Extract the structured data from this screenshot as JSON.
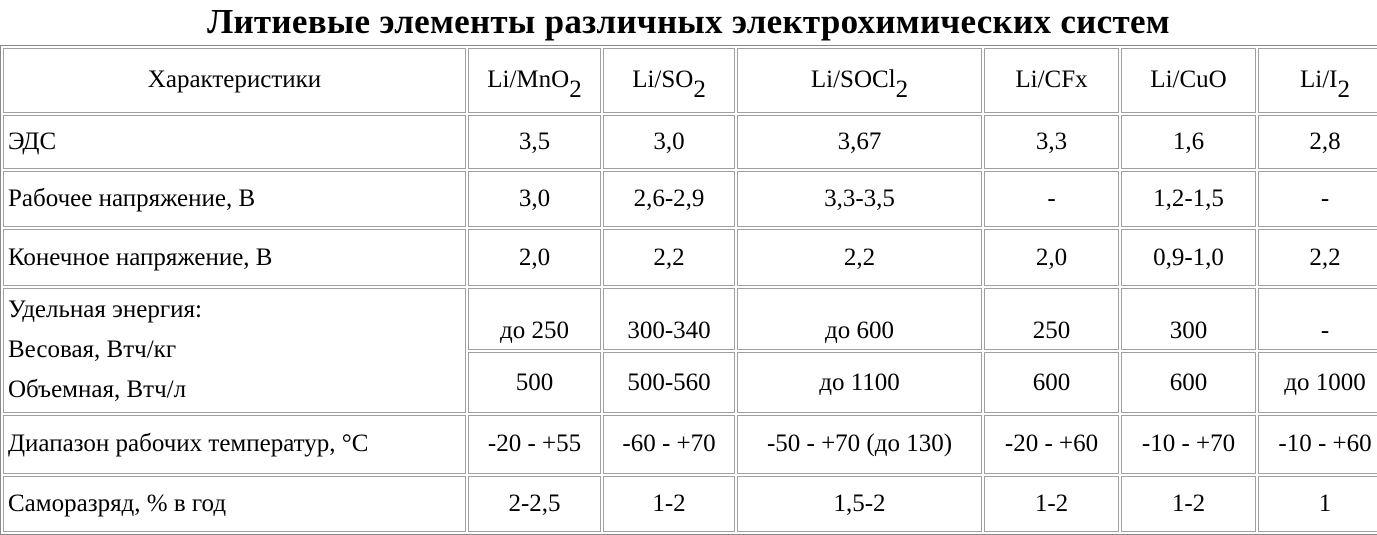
{
  "title": "Литиевые элементы различных электрохимических систем",
  "table": {
    "header": [
      {
        "text": "Характеристики"
      },
      {
        "text": "Li/MnO",
        "sub": "2"
      },
      {
        "text": "Li/SO",
        "sub": "2"
      },
      {
        "text": "Li/SOCl",
        "sub": "2"
      },
      {
        "text": "Li/CFx"
      },
      {
        "text": "Li/CuO"
      },
      {
        "text": "Li/I",
        "sub": "2"
      }
    ],
    "rows": [
      {
        "label": "ЭДС",
        "values": [
          "3,5",
          "3,0",
          "3,67",
          "3,3",
          "1,6",
          "2,8"
        ]
      },
      {
        "label": "Рабочее напряжение, В",
        "values": [
          "3,0",
          "2,6-2,9",
          "3,3-3,5",
          "-",
          "1,2-1,5",
          "-"
        ]
      },
      {
        "label": "Конечное напряжение, В",
        "values": [
          "2,0",
          "2,2",
          "2,2",
          "2,0",
          "0,9-1,0",
          "2,2"
        ]
      },
      {
        "labels": [
          "Удельная энергия:",
          "Весовая, Втч/кг",
          "Объемная, Втч/л"
        ],
        "values": [
          [
            "до 250",
            "300-340",
            "до 600",
            "250",
            "300",
            "-"
          ],
          [
            "500",
            "500-560",
            "до 1100",
            "600",
            "600",
            "до 1000"
          ]
        ]
      },
      {
        "label": "Диапазон рабочих температур, °С",
        "values": [
          "-20 - +55",
          "-60 - +70",
          "-50 - +70 (до 130)",
          "-20 - +60",
          "-10 - +70",
          "-10 - +60"
        ]
      },
      {
        "label": "Саморазряд, % в год",
        "values": [
          "2-2,5",
          "1-2",
          "1,5-2",
          "1-2",
          "1-2",
          "1"
        ]
      }
    ]
  }
}
